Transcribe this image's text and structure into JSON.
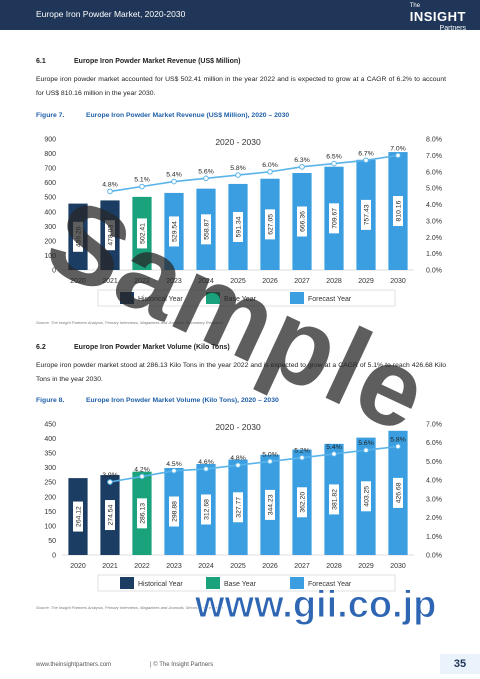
{
  "header": {
    "title": "Europe Iron Powder Market, 2020-2030",
    "logo_small": "The",
    "logo_brand": "INSIGHT",
    "logo_sub": "Partners"
  },
  "sections": [
    {
      "number": "6.1",
      "heading": "Europe Iron Powder Market Revenue (US$ Million)",
      "paragraph": "Europe iron powder market accounted for US$ 502.41 million in the year 2022 and is expected to grow at a CAGR of 6.2% to account for US$ 810.16 million in the year 2030.",
      "figure_label": "Figure 7.",
      "figure_title": "Europe Iron Powder Market Revenue (US$ Million), 2020 – 2030",
      "source": "Source: The Insight Partners Analysis, Primary Interviews, Magazines and Journals, Secondary Research"
    },
    {
      "number": "6.2",
      "heading": "Europe Iron Powder Market Volume (Kilo Tons)",
      "paragraph": "Europe iron powder market stood at 286.13 Kilo Tons in the year 2022 and is expected to grow at a CAGR of 5.1% to reach 426.68 Kilo Tons in the year 2030.",
      "figure_label": "Figure 8.",
      "figure_title": "Europe Iron Powder Market Volume (Kilo Tons), 2020 – 2030",
      "source": "Source: The Insight Partners Analysis, Primary Interviews, Magazines and Journals, Secondary Research"
    }
  ],
  "chart_data": [
    {
      "type": "bar",
      "title": "2020 - 2030",
      "categories": [
        "2020",
        "2021",
        "2022",
        "2023",
        "2024",
        "2025",
        "2026",
        "2027",
        "2028",
        "2029",
        "2030"
      ],
      "legend": [
        {
          "label": "Historical Year",
          "color": "#1b3d63"
        },
        {
          "label": "Base Year",
          "color": "#1aa27d"
        },
        {
          "label": "Forecast Year",
          "color": "#3a9ee0"
        }
      ],
      "series": [
        {
          "type": "bar",
          "legend_index": [
            0,
            0,
            1,
            2,
            2,
            2,
            2,
            2,
            2,
            2,
            2
          ],
          "values": [
            456.26,
            478.03,
            502.41,
            529.54,
            558.87,
            591.34,
            627.05,
            666.36,
            709.67,
            757.43,
            810.16
          ],
          "value_labels": [
            "456.26",
            "478.03",
            "502.41",
            "529.54",
            "558.87",
            "591.34",
            "627.05",
            "666.36",
            "709.67",
            "757.43",
            "810.16"
          ]
        },
        {
          "type": "line",
          "axis": "y2",
          "color": "#5ab4ea",
          "values": [
            null,
            4.8,
            5.1,
            5.4,
            5.6,
            5.8,
            6.0,
            6.3,
            6.5,
            6.7,
            7.0
          ],
          "value_labels": [
            null,
            "4.8%",
            "5.1%",
            "5.4%",
            "5.6%",
            "5.8%",
            "6.0%",
            "6.3%",
            "6.5%",
            "6.7%",
            "7.0%"
          ]
        }
      ],
      "ylim": [
        0,
        900
      ],
      "yticks": [
        0,
        100,
        200,
        300,
        400,
        500,
        600,
        700,
        800,
        900
      ],
      "y2lim": [
        0,
        8
      ],
      "y2ticks": [
        {
          "value": 0,
          "label": "0.0%"
        },
        {
          "value": 1,
          "label": "1.0%"
        },
        {
          "value": 2,
          "label": "2.0%"
        },
        {
          "value": 3,
          "label": "3.0%"
        },
        {
          "value": 4,
          "label": "4.0%"
        },
        {
          "value": 5,
          "label": "5.0%"
        },
        {
          "value": 6,
          "label": "6.0%"
        },
        {
          "value": 7,
          "label": "7.0%"
        },
        {
          "value": 8,
          "label": "8.0%"
        }
      ],
      "grid": false
    },
    {
      "type": "bar",
      "title": "2020 - 2030",
      "categories": [
        "2020",
        "2021",
        "2022",
        "2023",
        "2024",
        "2025",
        "2026",
        "2027",
        "2028",
        "2029",
        "2030"
      ],
      "legend": [
        {
          "label": "Historical Year",
          "color": "#1b3d63"
        },
        {
          "label": "Base Year",
          "color": "#1aa27d"
        },
        {
          "label": "Forecast Year",
          "color": "#3a9ee0"
        }
      ],
      "series": [
        {
          "type": "bar",
          "legend_index": [
            0,
            0,
            1,
            2,
            2,
            2,
            2,
            2,
            2,
            2,
            2
          ],
          "values": [
            264.12,
            274.54,
            286.13,
            298.88,
            312.68,
            327.77,
            344.23,
            362.2,
            381.82,
            403.25,
            426.68
          ],
          "value_labels": [
            "264.12",
            "274.54",
            "286.13",
            "298.88",
            "312.68",
            "327.77",
            "344.23",
            "362.20",
            "381.82",
            "403.25",
            "426.68"
          ]
        },
        {
          "type": "line",
          "axis": "y2",
          "color": "#5ab4ea",
          "values": [
            null,
            3.9,
            4.2,
            4.5,
            4.6,
            4.8,
            5.0,
            5.2,
            5.4,
            5.6,
            5.8
          ],
          "value_labels": [
            null,
            "3.9%",
            "4.2%",
            "4.5%",
            "4.6%",
            "4.8%",
            "5.0%",
            "5.2%",
            "5.4%",
            "5.6%",
            "5.8%"
          ]
        }
      ],
      "ylim": [
        0,
        450
      ],
      "yticks": [
        0,
        50,
        100,
        150,
        200,
        250,
        300,
        350,
        400,
        450
      ],
      "y2lim": [
        0,
        7
      ],
      "y2ticks": [
        {
          "value": 0,
          "label": "0.0%"
        },
        {
          "value": 1,
          "label": "1.0%"
        },
        {
          "value": 2,
          "label": "2.0%"
        },
        {
          "value": 3,
          "label": "3.0%"
        },
        {
          "value": 4,
          "label": "4.0%"
        },
        {
          "value": 5,
          "label": "5.0%"
        },
        {
          "value": 6,
          "label": "6.0%"
        },
        {
          "value": 7,
          "label": "7.0%"
        }
      ],
      "grid": false
    }
  ],
  "watermarks": [
    "Sample",
    "www.gii.co.jp"
  ],
  "footer": {
    "url": "www.theinsightpartners.com",
    "copyright": "| © The Insight Partners",
    "page": "35"
  }
}
